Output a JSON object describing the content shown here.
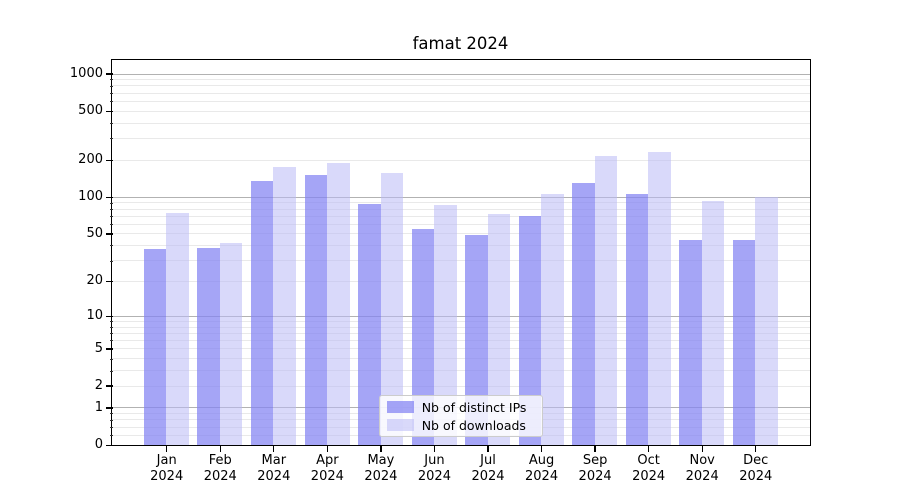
{
  "title": "famat 2024",
  "chart_data": {
    "type": "bar",
    "title": "famat 2024",
    "categories": [
      "Jan 2024",
      "Feb 2024",
      "Mar 2024",
      "Apr 2024",
      "May 2024",
      "Jun 2024",
      "Jul 2024",
      "Aug 2024",
      "Sep 2024",
      "Oct 2024",
      "Nov 2024",
      "Dec 2024"
    ],
    "series": [
      {
        "name": "Nb of distinct IPs",
        "color": "rgba(130,130,243,0.72)",
        "values": [
          37,
          38,
          135,
          149,
          87,
          54,
          49,
          70,
          129,
          105,
          44,
          44
        ]
      },
      {
        "name": "Nb of downloads",
        "color": "rgba(185,185,245,0.55)",
        "values": [
          73,
          42,
          176,
          190,
          155,
          86,
          72,
          106,
          216,
          230,
          93,
          100
        ]
      }
    ],
    "yscale": "log10(1+y)",
    "yticks": [
      0,
      1,
      2,
      5,
      10,
      20,
      50,
      100,
      200,
      500,
      1000
    ],
    "ylim": [
      0,
      1294
    ],
    "xlabel": "",
    "ylabel": "",
    "grid": "both",
    "grid_major_color": "#b2b2b2",
    "grid_minor_color": "#e9e9e9",
    "legend_position": "lower center"
  }
}
